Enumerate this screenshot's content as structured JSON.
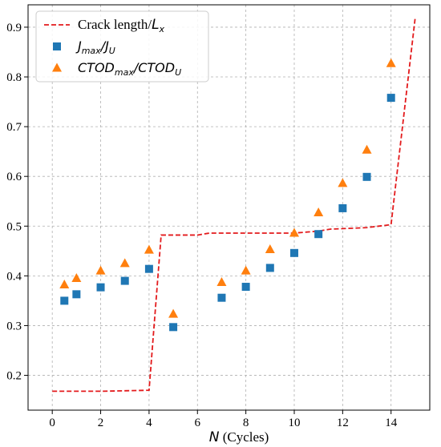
{
  "chart_data": {
    "type": "scatter",
    "xlabel_var": "N",
    "xlabel_unit": " (Cycles)",
    "ylabel": "",
    "xlim": [
      -1,
      15.6
    ],
    "ylim": [
      0.13,
      0.945
    ],
    "xticks": [
      0,
      2,
      4,
      6,
      8,
      10,
      12,
      14
    ],
    "yticks": [
      0.2,
      0.3,
      0.4,
      0.5,
      0.6,
      0.7,
      0.8,
      0.9
    ],
    "grid": true,
    "legend_position": "top-left",
    "series": [
      {
        "name_main": "Crack length/",
        "name_var": "L",
        "name_sub": "x",
        "kind": "line",
        "color": "#e31a1c",
        "points": [
          [
            0,
            0.168
          ],
          [
            2,
            0.168
          ],
          [
            4,
            0.17
          ],
          [
            4.5,
            0.482
          ],
          [
            6,
            0.482
          ],
          [
            6.5,
            0.486
          ],
          [
            10,
            0.486
          ],
          [
            11,
            0.49
          ],
          [
            11.5,
            0.494
          ],
          [
            12,
            0.495
          ],
          [
            13,
            0.497
          ],
          [
            14,
            0.503
          ],
          [
            15,
            0.92
          ]
        ]
      },
      {
        "name_parts": [
          {
            "t": "J",
            "sub": false
          },
          {
            "t": "max",
            "sub": true
          },
          {
            "t": "/J",
            "sub": false
          },
          {
            "t": "U",
            "sub": true
          }
        ],
        "kind": "square",
        "color": "#1f77b4",
        "points": [
          [
            0.5,
            0.35
          ],
          [
            1,
            0.363
          ],
          [
            2,
            0.377
          ],
          [
            3,
            0.39
          ],
          [
            4,
            0.414
          ],
          [
            5,
            0.297
          ],
          [
            7,
            0.356
          ],
          [
            8,
            0.378
          ],
          [
            9,
            0.416
          ],
          [
            10,
            0.446
          ],
          [
            11,
            0.484
          ],
          [
            12,
            0.536
          ],
          [
            13,
            0.599
          ],
          [
            14,
            0.758
          ]
        ]
      },
      {
        "name_parts": [
          {
            "t": "CTOD",
            "sub": false
          },
          {
            "t": "max",
            "sub": true
          },
          {
            "t": "/CTOD",
            "sub": false
          },
          {
            "t": "U",
            "sub": true
          }
        ],
        "kind": "triangle",
        "color": "#ff7f0e",
        "points": [
          [
            0.5,
            0.382
          ],
          [
            1,
            0.395
          ],
          [
            2,
            0.41
          ],
          [
            3,
            0.425
          ],
          [
            4,
            0.452
          ],
          [
            5,
            0.323
          ],
          [
            7,
            0.387
          ],
          [
            8,
            0.41
          ],
          [
            9,
            0.453
          ],
          [
            10,
            0.486
          ],
          [
            11,
            0.527
          ],
          [
            12,
            0.586
          ],
          [
            13,
            0.653
          ],
          [
            14,
            0.827
          ]
        ]
      }
    ]
  }
}
